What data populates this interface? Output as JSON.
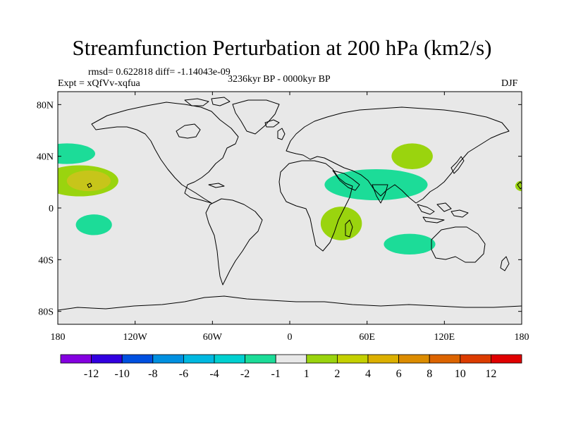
{
  "title": "Streamfunction Perturbation at 200 hPa (km2/s)",
  "stats": "rmsd= 0.622818 diff= -1.14043e-09",
  "experiment": "Expt = xQfVv-xqfua",
  "period": "3236kyr BP - 0000kyr BP",
  "season": "DJF",
  "chart_data": {
    "type": "contour-map",
    "projection": "cylindrical-equidistant",
    "background_color": "#e8e8e8",
    "lon_range": [
      -180,
      180
    ],
    "lat_range": [
      -90,
      90
    ],
    "lon_ticks": [
      {
        "value": -180,
        "label": "180"
      },
      {
        "value": -120,
        "label": "120W"
      },
      {
        "value": -60,
        "label": "60W"
      },
      {
        "value": 0,
        "label": "0"
      },
      {
        "value": 60,
        "label": "60E"
      },
      {
        "value": 120,
        "label": "120E"
      },
      {
        "value": 180,
        "label": "180"
      }
    ],
    "lat_ticks": [
      {
        "value": 80,
        "label": "80N"
      },
      {
        "value": 40,
        "label": "40N"
      },
      {
        "value": 0,
        "label": "0"
      },
      {
        "value": -40,
        "label": "40S"
      },
      {
        "value": -80,
        "label": "80S"
      }
    ],
    "anomalies": [
      {
        "name": "north-pacific-negative",
        "level": "-2 to -1",
        "color": "#1cdc98",
        "center": [
          -173,
          42
        ],
        "radius": [
          22,
          8
        ]
      },
      {
        "name": "central-pacific-positive",
        "level": "1 to 2",
        "color": "#9ad40e",
        "center": [
          -163,
          21
        ],
        "radius": [
          30,
          12
        ]
      },
      {
        "name": "central-pacific-positive-core",
        "level": "2 to 4",
        "color": "#c7c51a",
        "center": [
          -156,
          21
        ],
        "radius": [
          17,
          8
        ]
      },
      {
        "name": "south-pacific-negative",
        "level": "-2 to -1",
        "color": "#1cdc98",
        "center": [
          -152,
          -13
        ],
        "radius": [
          14,
          8
        ]
      },
      {
        "name": "central-asia-positive",
        "level": "1 to 2",
        "color": "#9ad40e",
        "center": [
          95,
          40
        ],
        "radius": [
          16,
          10
        ]
      },
      {
        "name": "indian-ocean-negative",
        "level": "-2 to -1",
        "color": "#1cdc98",
        "center": [
          67,
          18
        ],
        "radius": [
          40,
          12
        ]
      },
      {
        "name": "africa-positive",
        "level": "1 to 2",
        "color": "#9ad40e",
        "center": [
          40,
          -12
        ],
        "radius": [
          16,
          13
        ]
      },
      {
        "name": "southern-indian-negative",
        "level": "-2 to -1",
        "color": "#1cdc98",
        "center": [
          93,
          -28
        ],
        "radius": [
          20,
          8
        ]
      },
      {
        "name": "dateline-positive",
        "level": "1 to 2",
        "color": "#9ad40e",
        "center": [
          180,
          17
        ],
        "radius": [
          5,
          4
        ]
      }
    ],
    "colorbar": {
      "colors": [
        "#8400e0",
        "#3200e0",
        "#0050e0",
        "#0090e0",
        "#00b8e0",
        "#00d0d0",
        "#1cdc98",
        "#e8e8e8",
        "#9ad40e",
        "#c4d000",
        "#dcb000",
        "#dc8c00",
        "#dc6400",
        "#dc3c00",
        "#e00000"
      ],
      "labels": [
        "-12",
        "-10",
        "-8",
        "-6",
        "-4",
        "-2",
        "-1",
        "1",
        "2",
        "4",
        "6",
        "8",
        "10",
        "12"
      ]
    }
  }
}
